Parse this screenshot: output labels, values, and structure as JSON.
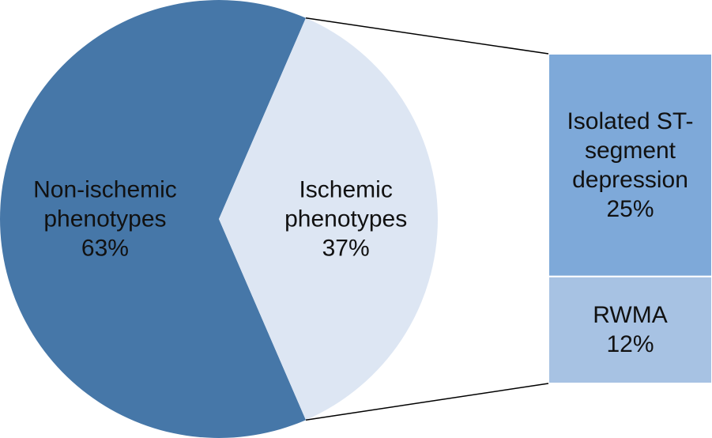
{
  "chart_data": {
    "type": "pie-bar",
    "categories": [
      "Non-ischemic phenotypes",
      "Ischemic phenotypes"
    ],
    "values": [
      63,
      37
    ],
    "value_labels": [
      "63%",
      "37%"
    ],
    "colors": [
      "#4677a8",
      "#dde6f3"
    ],
    "breakdown": {
      "categories": [
        "Isolated ST-segment depression",
        "RWMA"
      ],
      "values": [
        25,
        12
      ],
      "value_labels": [
        "25%",
        "12%"
      ],
      "colors": [
        "#7ea9d9",
        "#a7c2e3"
      ]
    }
  }
}
